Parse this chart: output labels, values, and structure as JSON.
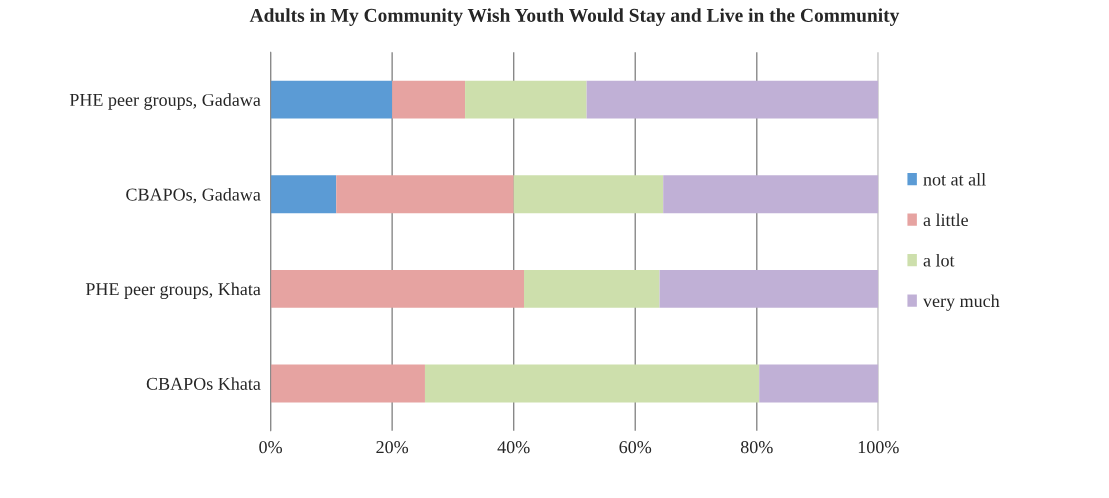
{
  "chart_data": {
    "type": "bar",
    "orientation": "horizontal",
    "stacked": true,
    "title": "Adults in My Community Wish Youth Would Stay and Live in the Community",
    "categories": [
      "PHE peer groups, Gadawa",
      "CBAPOs, Gadawa",
      "PHE peer groups, Khata",
      "CBAPOs Khata"
    ],
    "series": [
      {
        "name": "not at all",
        "color": "#5b9bd5",
        "values": [
          20,
          10.8,
          0,
          0
        ]
      },
      {
        "name": "a little",
        "color": "#e6a3a1",
        "values": [
          12,
          29.2,
          41.7,
          25.4
        ]
      },
      {
        "name": "a lot",
        "color": "#cddfac",
        "values": [
          20,
          24.6,
          22.3,
          55
        ]
      },
      {
        "name": "very much",
        "color": "#c0b0d6",
        "values": [
          48,
          35.4,
          36,
          19.6
        ]
      }
    ],
    "xlim": [
      0,
      100
    ],
    "xticks": [
      {
        "value": 0,
        "label": "0%"
      },
      {
        "value": 20,
        "label": "20%"
      },
      {
        "value": 40,
        "label": "40%"
      },
      {
        "value": 60,
        "label": "60%"
      },
      {
        "value": 80,
        "label": "80%"
      },
      {
        "value": 100,
        "label": "100%"
      }
    ],
    "grid": "x",
    "legend": "right"
  }
}
